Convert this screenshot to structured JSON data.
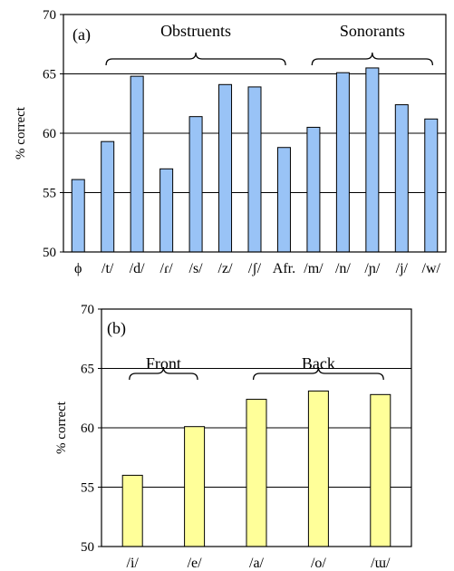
{
  "chart_data": [
    {
      "type": "bar",
      "panel_label": "(a)",
      "ylabel": "% correct",
      "ylim": [
        50,
        70
      ],
      "yticks": [
        50,
        55,
        60,
        65,
        70
      ],
      "grid": true,
      "bar_color": "#99c3f6",
      "categories": [
        "ϕ",
        "/t/",
        "/d/",
        "/ɾ/",
        "/s/",
        "/z/",
        "/ʃ/",
        "Afr.",
        "/m/",
        "/n/",
        "/ɲ/",
        "/j/",
        "/w/"
      ],
      "values": [
        56.1,
        59.3,
        64.8,
        57.0,
        61.4,
        64.1,
        63.9,
        58.8,
        60.5,
        65.1,
        65.5,
        62.4,
        61.2
      ],
      "groups": [
        {
          "label": "Obstruents",
          "from": 1,
          "to": 7
        },
        {
          "label": "Sonorants",
          "from": 8,
          "to": 12
        }
      ]
    },
    {
      "type": "bar",
      "panel_label": "(b)",
      "ylabel": "% correct",
      "ylim": [
        50,
        70
      ],
      "yticks": [
        50,
        55,
        60,
        65,
        70
      ],
      "grid": true,
      "bar_color": "#ffff99",
      "categories": [
        "/i/",
        "/e/",
        "/a/",
        "/o/",
        "/ɯ/"
      ],
      "values": [
        56.0,
        60.1,
        62.4,
        63.1,
        62.8
      ],
      "groups": [
        {
          "label": "Front",
          "from": 0,
          "to": 1
        },
        {
          "label": "Back",
          "from": 2,
          "to": 4
        }
      ]
    }
  ]
}
